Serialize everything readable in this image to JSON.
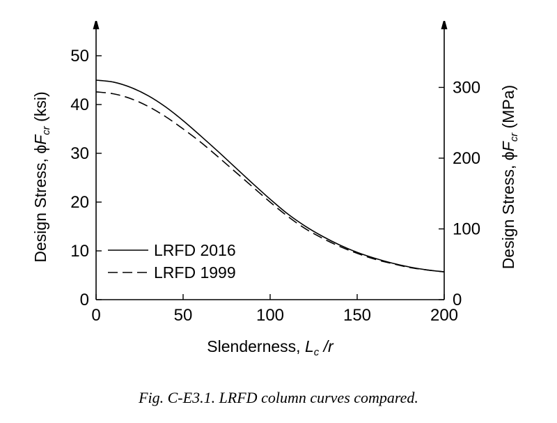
{
  "caption": "Fig. C-E3.1.  LRFD column curves compared.",
  "chart_data": {
    "type": "line",
    "xlabel": {
      "prefix": "Slenderness, ",
      "var": "L",
      "sub": "c",
      "suffix": " /r"
    },
    "ylabel_left": {
      "prefix": "Design Stress, ",
      "phi": "ϕ",
      "var": "F",
      "sub": "cr",
      "suffix": " (ksi)"
    },
    "ylabel_right": {
      "prefix": "Design Stress, ",
      "phi": "ϕ",
      "var": "F",
      "sub": "cr",
      "suffix": " (MPa)"
    },
    "xlim": [
      0,
      200
    ],
    "ylim_left": [
      0,
      50
    ],
    "xticks": [
      "0",
      "50",
      "100",
      "150",
      "200"
    ],
    "yticks_left": [
      "0",
      "10",
      "20",
      "30",
      "40",
      "50"
    ],
    "yticks_right": [
      "0",
      "100",
      "200",
      "300"
    ],
    "ksi_to_mpa": 6.895,
    "legend_position": "bottom-left",
    "series": [
      {
        "name": "LRFD 2016",
        "dash": "solid",
        "x": [
          0,
          10,
          20,
          30,
          40,
          50,
          60,
          70,
          80,
          90,
          100,
          110,
          120,
          130,
          140,
          150,
          160,
          170,
          180,
          190,
          200
        ],
        "y": [
          45.0,
          44.6,
          43.5,
          41.8,
          39.5,
          36.7,
          33.6,
          30.4,
          27.1,
          23.8,
          20.6,
          17.6,
          15.1,
          13.0,
          11.2,
          9.7,
          8.5,
          7.5,
          6.7,
          6.1,
          5.7
        ]
      },
      {
        "name": "LRFD 1999",
        "dash": "dashed",
        "x": [
          0,
          10,
          20,
          30,
          40,
          50,
          60,
          70,
          80,
          90,
          100,
          110,
          120,
          130,
          140,
          150,
          160,
          170,
          180,
          190,
          200
        ],
        "y": [
          42.6,
          42.2,
          41.2,
          39.6,
          37.5,
          35.0,
          32.3,
          29.3,
          26.2,
          23.1,
          20.0,
          17.1,
          14.6,
          12.6,
          10.9,
          9.5,
          8.3,
          7.4,
          6.6,
          6.1,
          5.7
        ]
      }
    ]
  }
}
